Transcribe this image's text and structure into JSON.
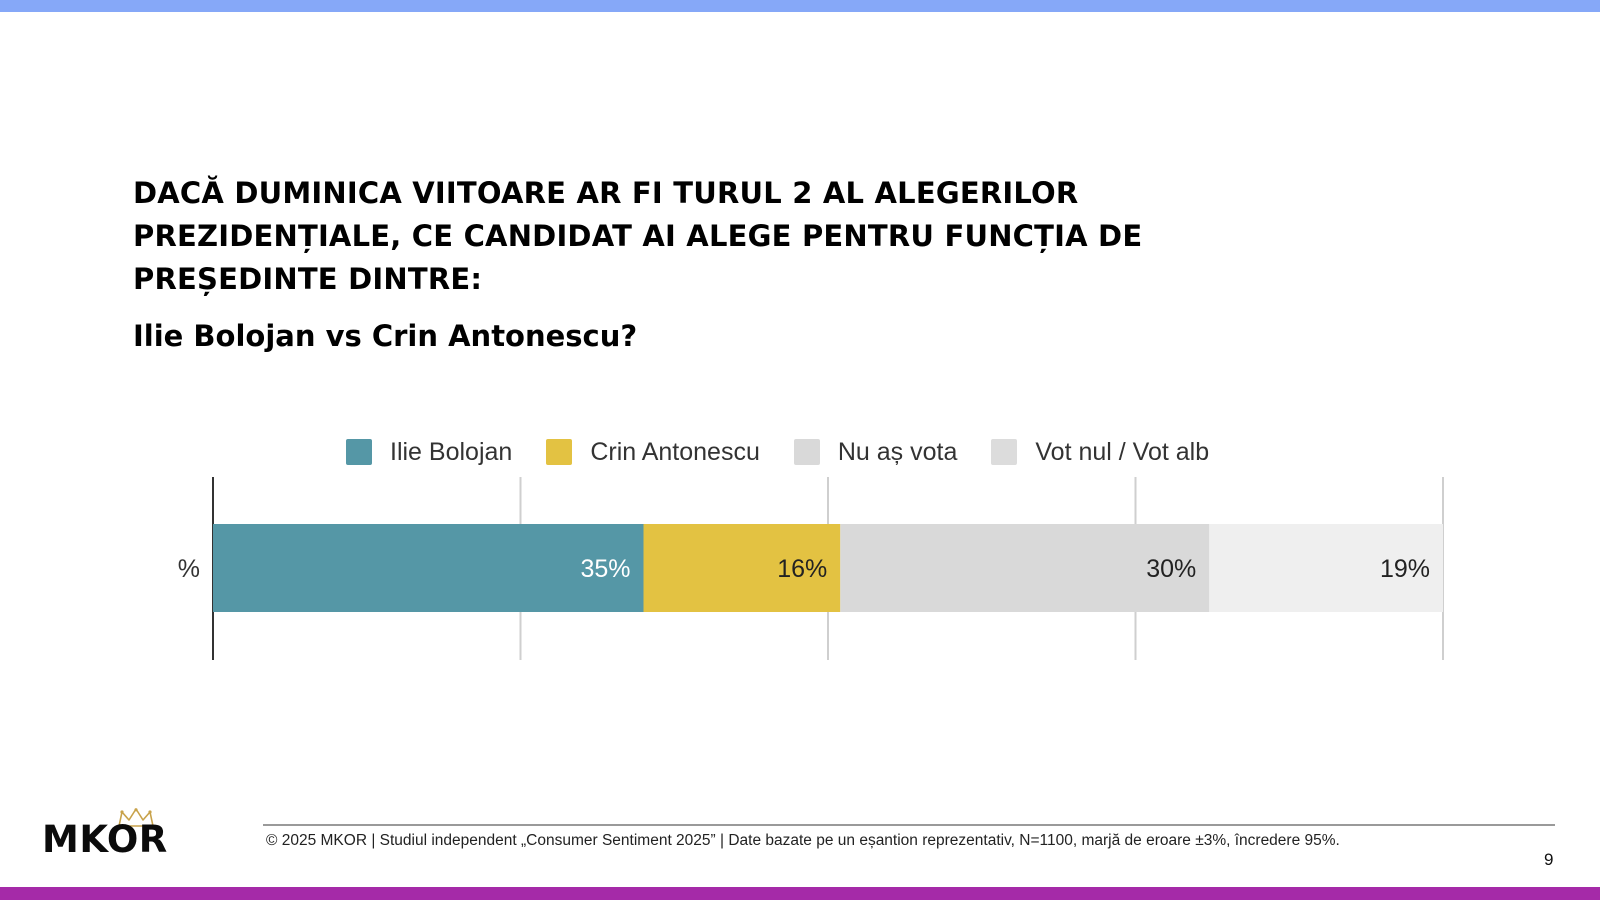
{
  "title": "DACĂ DUMINICA VIITOARE AR FI TURUL 2 AL ALEGERILOR PREZIDENȚIALE, CE CANDIDAT AI ALEGE PENTRU FUNCȚIA DE PREȘEDINTE DINTRE:",
  "subtitle": "Ilie Bolojan vs Crin Antonescu?",
  "legend": [
    {
      "label": "Ilie Bolojan",
      "color": "#5597a6"
    },
    {
      "label": "Crin Antonescu",
      "color": "#e3c242"
    },
    {
      "label": "Nu aș vota",
      "color": "#d9d9d9"
    },
    {
      "label": "Vot nul / Vot alb",
      "color": "#dcdcdc"
    }
  ],
  "chart_data": {
    "type": "bar",
    "orientation": "horizontal",
    "stacked": true,
    "categories": [
      "%"
    ],
    "series": [
      {
        "name": "Ilie Bolojan",
        "values": [
          35
        ],
        "label": "35%",
        "color": "#5597a6",
        "label_color": "#ffffff"
      },
      {
        "name": "Crin Antonescu",
        "values": [
          16
        ],
        "label": "16%",
        "color": "#e3c242",
        "label_color": "#222222"
      },
      {
        "name": "Nu aș vota",
        "values": [
          30
        ],
        "label": "30%",
        "color": "#d9d9d9",
        "label_color": "#222222"
      },
      {
        "name": "Vot nul / Vot alb",
        "values": [
          19
        ],
        "label": "19%",
        "color": "#efefef",
        "label_color": "#222222"
      }
    ],
    "xlim": [
      0,
      100
    ],
    "grid": true,
    "legend_position": "top"
  },
  "footer": {
    "text": "© 2025 MKOR | Studiul independent „Consumer Sentiment 2025” | Date bazate pe un eșantion reprezentativ, N=1100, marjă de eroare ±3%, încredere 95%.",
    "page_number": "9"
  },
  "logo": {
    "text": "MKOR"
  },
  "colors": {
    "top_bar": "#86a8f8",
    "bottom_bar": "#a52aa8"
  }
}
